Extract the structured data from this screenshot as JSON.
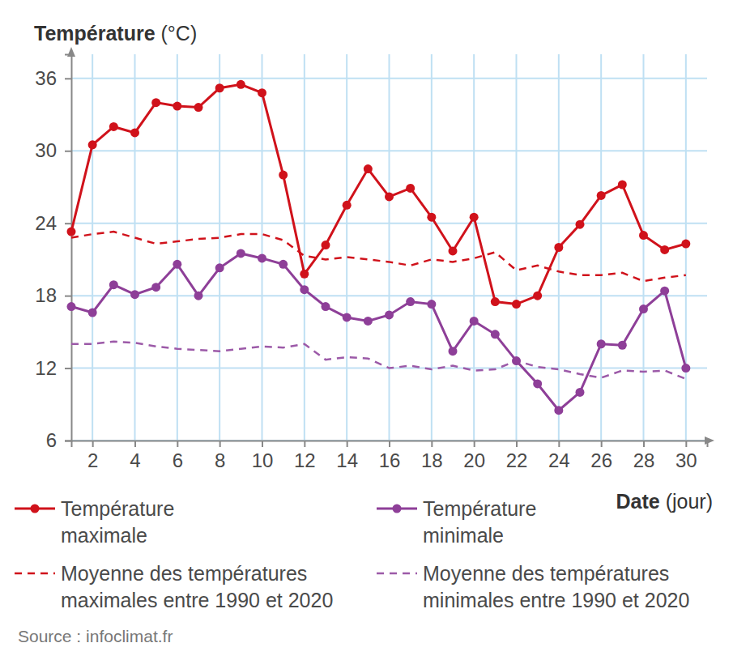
{
  "chart_data": {
    "type": "line",
    "ylabel": "Température (°C)",
    "xlabel": "Date (jour)",
    "source": "Source : infoclimat.fr",
    "x": [
      1,
      2,
      3,
      4,
      5,
      6,
      7,
      8,
      9,
      10,
      11,
      12,
      13,
      14,
      15,
      16,
      17,
      18,
      19,
      20,
      21,
      22,
      23,
      24,
      25,
      26,
      27,
      28,
      29,
      30
    ],
    "xlim": [
      1,
      31
    ],
    "xticks": [
      2,
      4,
      6,
      8,
      10,
      12,
      14,
      16,
      18,
      20,
      22,
      24,
      26,
      28,
      30
    ],
    "ylim": [
      6,
      38
    ],
    "yticks": [
      6,
      12,
      18,
      24,
      30,
      36
    ],
    "grid": true,
    "legend": "bottom",
    "series": [
      {
        "name": "Température maximale",
        "color": "#d0121b",
        "marker": "circle",
        "line_style": "solid",
        "values": [
          23.3,
          30.5,
          32.0,
          31.5,
          34.0,
          33.7,
          33.6,
          35.2,
          35.5,
          34.8,
          28.0,
          19.8,
          22.2,
          25.5,
          28.5,
          26.2,
          26.9,
          24.5,
          21.7,
          24.5,
          17.5,
          17.3,
          18.0,
          22.0,
          23.9,
          26.3,
          27.2,
          23.0,
          21.8,
          22.3
        ]
      },
      {
        "name": "Température minimale",
        "color": "#8e3f98",
        "marker": "circle",
        "line_style": "solid",
        "values": [
          17.1,
          16.6,
          18.9,
          18.1,
          18.7,
          20.6,
          18.0,
          20.3,
          21.5,
          21.1,
          20.6,
          18.5,
          17.1,
          16.2,
          15.9,
          16.4,
          17.5,
          17.3,
          13.4,
          15.9,
          14.8,
          12.6,
          10.7,
          8.5,
          10.0,
          14.0,
          13.9,
          16.9,
          18.4,
          12.0
        ]
      },
      {
        "name": "Moyenne des températures maximales entre 1990 et 2020",
        "color": "#d0121b",
        "marker": "none",
        "line_style": "dashed",
        "values": [
          22.8,
          23.1,
          23.3,
          22.8,
          22.3,
          22.5,
          22.7,
          22.8,
          23.1,
          23.1,
          22.6,
          21.3,
          21.0,
          21.2,
          21.0,
          20.8,
          20.5,
          21.0,
          20.8,
          21.1,
          21.6,
          20.1,
          20.5,
          20.0,
          19.7,
          19.7,
          19.9,
          19.2,
          19.5,
          19.7
        ]
      },
      {
        "name": "Moyenne des températures minimales entre 1990 et 2020",
        "color": "#9c5aa8",
        "marker": "none",
        "line_style": "dashed",
        "values": [
          14.0,
          14.0,
          14.2,
          14.1,
          13.8,
          13.6,
          13.5,
          13.4,
          13.6,
          13.8,
          13.7,
          14.0,
          12.7,
          12.9,
          12.8,
          12.0,
          12.2,
          11.9,
          12.2,
          11.8,
          11.9,
          12.6,
          12.1,
          11.9,
          11.5,
          11.2,
          11.8,
          11.7,
          11.8,
          11.1
        ]
      }
    ]
  }
}
